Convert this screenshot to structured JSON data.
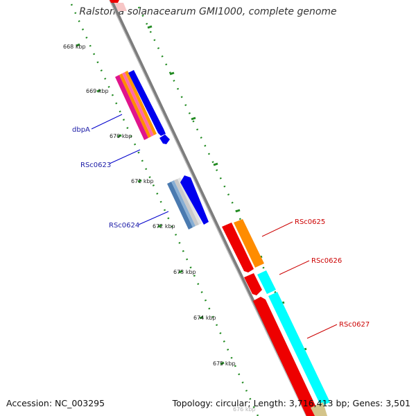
{
  "title": "Ralstonia solanacearum GMI1000, complete genome",
  "footer": {
    "accession": "Accession: NC_003295",
    "summary": "Topology: circular; Length: 3,716,413 bp; Genes: 3,501"
  },
  "scale": {
    "unit": "kbp",
    "ticks": [
      "668 kbp",
      "669 kbp",
      "670 kbp",
      "671 kbp",
      "672 kbp",
      "673 kbp",
      "674 kbp",
      "675 kbp",
      "676 kbp"
    ]
  },
  "genes": {
    "reverse_strand": [
      {
        "label": "dbpA",
        "color": "#1a1aa6"
      },
      {
        "label": "RSc0623",
        "color": "#1a1aa6"
      },
      {
        "label": "RSc0624",
        "color": "#1a1aa6"
      }
    ],
    "forward_strand": [
      {
        "label": "RSc0625",
        "color": "#cc0000"
      },
      {
        "label": "RSc0626",
        "color": "#cc0000"
      },
      {
        "label": "RSc0627",
        "color": "#cc0000"
      }
    ]
  },
  "colors": {
    "backbone": "#8a8a8a",
    "tick_green": "#228b22",
    "feature_blue": "#0000ee",
    "feature_red": "#ee0000",
    "feature_orange": "#ff8c00",
    "feature_cyan": "#00ffff"
  }
}
